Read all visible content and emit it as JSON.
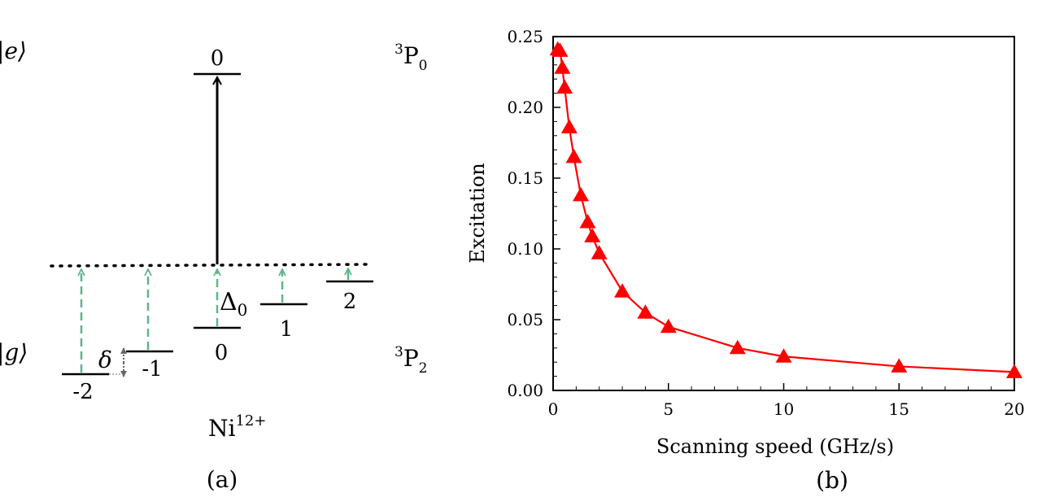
{
  "panel_a": {
    "excited_ket": "|e⟩",
    "ground_ket": "|g⟩",
    "excited_state_mult": "3",
    "excited_state_letter": "P",
    "excited_state_j": "0",
    "ground_state_mult": "3",
    "ground_state_letter": "P",
    "ground_state_j": "2",
    "excited_sublevel": "0",
    "ground_sublevels": [
      "-2",
      "-1",
      "0",
      "1",
      "2"
    ],
    "detuning_symbol": "Δ",
    "detuning_subscript": "0",
    "splitting_symbol": "δ",
    "ion_base": "Ni",
    "ion_charge": "12+",
    "caption": "(a)",
    "colors": {
      "laser_arrow": "#5fb58a",
      "main_arrow": "#000000",
      "splitting_arrow": "#666666"
    }
  },
  "panel_b": {
    "caption": "(b)",
    "chart_data": {
      "type": "line",
      "xlabel": "Scanning speed (GHz/s)",
      "ylabel": "Excitation",
      "xlim": [
        0,
        20
      ],
      "ylim": [
        0,
        0.25
      ],
      "x_ticks": [
        0,
        5,
        10,
        15,
        20
      ],
      "x_tick_labels": [
        "0",
        "5",
        "10",
        "15",
        "20"
      ],
      "y_ticks": [
        0,
        0.05,
        0.1,
        0.15,
        0.2,
        0.25
      ],
      "y_tick_labels": [
        "0.00",
        "0.05",
        "0.10",
        "0.15",
        "0.20",
        "0.25"
      ],
      "grid": false,
      "marker": "triangle",
      "color": "#ff0000",
      "series": [
        {
          "x": [
            0.2,
            0.3,
            0.4,
            0.5,
            0.7,
            0.9,
            1.2,
            1.5,
            1.7,
            2,
            3,
            4,
            5,
            8,
            10,
            15,
            20
          ],
          "y": [
            0.241,
            0.24,
            0.228,
            0.214,
            0.186,
            0.165,
            0.138,
            0.119,
            0.109,
            0.097,
            0.07,
            0.055,
            0.045,
            0.03,
            0.024,
            0.017,
            0.013
          ]
        }
      ]
    }
  }
}
